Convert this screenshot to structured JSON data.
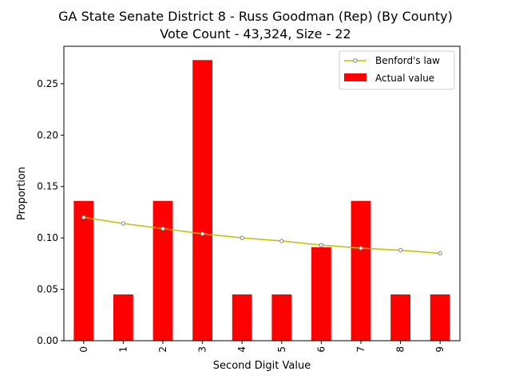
{
  "title_lines": [
    "GA State Senate District 8 - Russ Goodman (Rep) (By County)",
    "Vote Count - 43,324, Size - 22"
  ],
  "chart_data": {
    "type": "bar",
    "title": "GA State Senate District 8 - Russ Goodman (Rep) (By County)\nVote Count - 43,324, Size - 22",
    "xlabel": "Second Digit Value",
    "ylabel": "Proportion",
    "categories": [
      "0",
      "1",
      "2",
      "3",
      "4",
      "5",
      "6",
      "7",
      "8",
      "9"
    ],
    "ylim": [
      0,
      0.2864
    ],
    "yticks": [
      0.0,
      0.05,
      0.1,
      0.15,
      0.2,
      0.25
    ],
    "ytick_labels": [
      "0.00",
      "0.05",
      "0.10",
      "0.15",
      "0.20",
      "0.25"
    ],
    "grid": false,
    "legend_position": "top-right",
    "series": [
      {
        "name": "Actual value",
        "type": "bar",
        "color": "#ff0000",
        "values": [
          0.136,
          0.045,
          0.136,
          0.273,
          0.045,
          0.045,
          0.091,
          0.136,
          0.045,
          0.045
        ]
      },
      {
        "name": "Benford's law",
        "type": "line",
        "color": "#bfbf00",
        "marker_edge": "#808080",
        "values": [
          0.12,
          0.114,
          0.109,
          0.104,
          0.1,
          0.097,
          0.093,
          0.09,
          0.088,
          0.085
        ]
      }
    ]
  }
}
